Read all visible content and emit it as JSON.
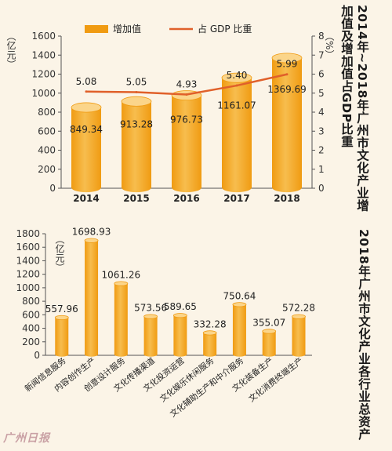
{
  "titles": {
    "top": "2014年~2018年广州市文化产业增\n加值及增加值占GDP比重",
    "bottom": "2018年广州市文化产业各行业总资产"
  },
  "logo_text": "广州日报",
  "colors": {
    "background": "#fbf4e7",
    "bar": "#f09b12",
    "bar_light": "#f7bd4e",
    "bar_top": "#fbd58a",
    "line": "#e0602a",
    "axis": "#555555"
  },
  "chart_data": [
    {
      "type": "bar",
      "categories": [
        "2014",
        "2015",
        "2016",
        "2017",
        "2018"
      ],
      "series": [
        {
          "name": "增加值",
          "values": [
            849.34,
            913.28,
            976.73,
            1161.07,
            1369.69
          ],
          "labels": [
            "849.34",
            "913.28",
            "976.73",
            "1161.07",
            "1369.69"
          ]
        },
        {
          "name": "占 GDP 比重",
          "type": "line",
          "axis": "right",
          "values": [
            5.08,
            5.05,
            4.93,
            5.4,
            5.99
          ],
          "labels": [
            "5.08",
            "5.05",
            "4.93",
            "5.40",
            "5.99"
          ]
        }
      ],
      "ylabel": "（亿元）",
      "ylabel_right": "（%）",
      "ylim": [
        0,
        1600
      ],
      "yticks": [
        "0",
        "200",
        "400",
        "600",
        "800",
        "1000",
        "1200",
        "1400",
        "1600"
      ],
      "ylim_right": [
        0,
        8
      ],
      "yticks_right": [
        "0",
        "1",
        "2",
        "3",
        "4",
        "5",
        "6",
        "7",
        "8"
      ],
      "legend_placement": "top",
      "grid": false
    },
    {
      "type": "bar",
      "categories": [
        "新闻信息服务",
        "内容创作生产",
        "创意设计服务",
        "文化传播渠道",
        "文化投资运营",
        "文化娱乐休闲服务",
        "文化辅助生产和中介服务",
        "文化装备生产",
        "文化消费终端生产"
      ],
      "values": [
        557.96,
        1698.93,
        1061.26,
        573.56,
        589.65,
        332.28,
        750.64,
        355.07,
        572.28
      ],
      "labels": [
        "557.96",
        "1698.93",
        "1061.26",
        "573.56",
        "589.65",
        "332.28",
        "750.64",
        "355.07",
        "572.28"
      ],
      "ylabel": "（亿元）",
      "ylim": [
        0,
        1800
      ],
      "yticks": [
        "0",
        "200",
        "400",
        "600",
        "800",
        "1000",
        "1200",
        "1400",
        "1600",
        "1800"
      ],
      "grid": false
    }
  ]
}
